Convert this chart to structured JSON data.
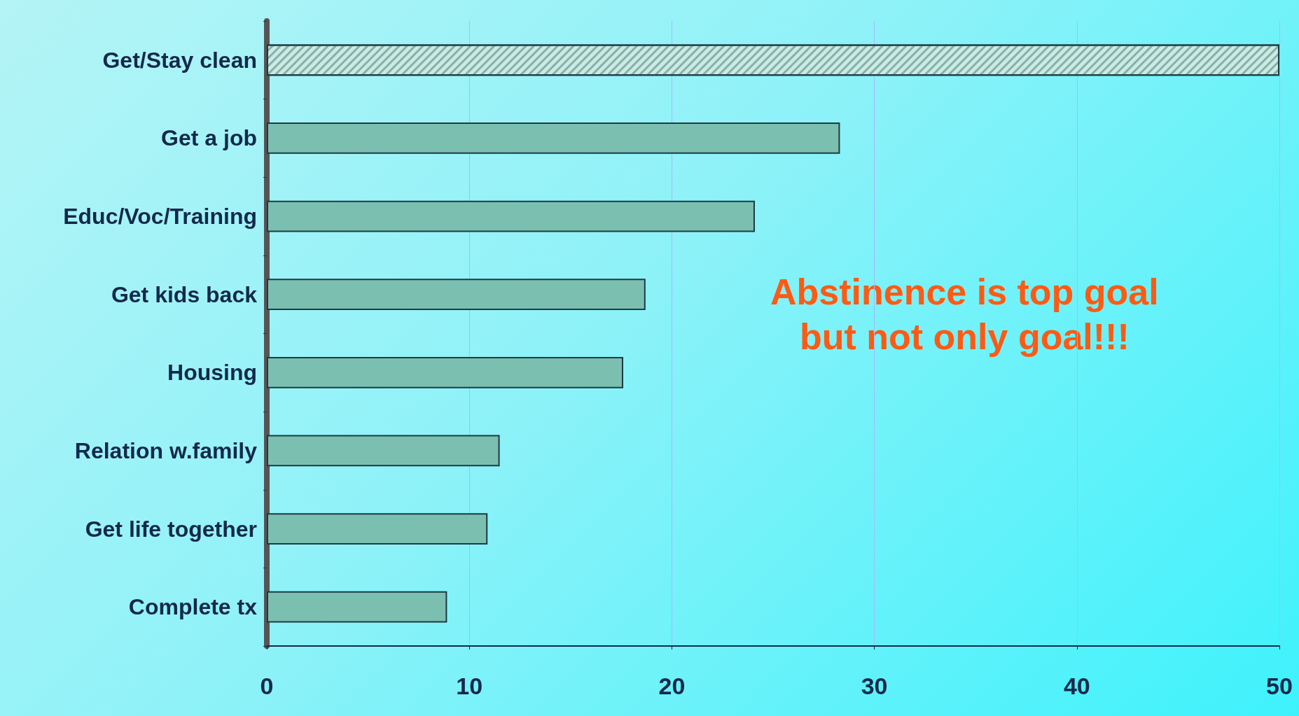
{
  "chart_data": {
    "type": "bar",
    "orientation": "horizontal",
    "categories": [
      "Get/Stay clean",
      "Get a job",
      "Educ/Voc/Training",
      "Get kids back",
      "Housing",
      "Relation w.family",
      "Get life together",
      "Complete tx"
    ],
    "values": [
      50,
      28.3,
      24.1,
      18.7,
      17.6,
      11.5,
      10.9,
      8.9
    ],
    "colors": [
      "#cdeae3",
      "#7bbfb0",
      "#7bbfb0",
      "#7bbfb0",
      "#7bbfb0",
      "#7bbfb0",
      "#7bbfb0",
      "#7bbfb0"
    ],
    "xlim": [
      0,
      50
    ],
    "xticks": [
      0,
      10,
      20,
      30,
      40,
      50
    ],
    "grid": "x",
    "annotations": [
      "Abstinence is top goal\nbut not only goal!!!"
    ]
  }
}
